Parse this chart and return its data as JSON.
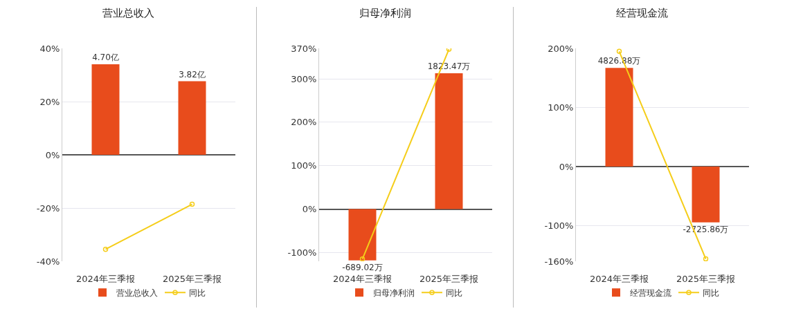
{
  "chart_data": [
    {
      "type": "bar",
      "title": "营业总收入",
      "categories": [
        "2024年三季报",
        "2025年三季报"
      ],
      "series": [
        {
          "name": "营业总收入",
          "axis": "y2",
          "color": "#e84c1c",
          "values": [
            4.7,
            3.82
          ],
          "value_labels": [
            "4.70亿",
            "3.82亿"
          ]
        },
        {
          "name": "同比",
          "type": "line",
          "color": "#f5cd19",
          "values": [
            -35.5,
            -18.6
          ]
        }
      ],
      "ylim": [
        -40,
        40
      ],
      "yticks": [
        {
          "value": -40,
          "label": "-40%"
        },
        {
          "value": -20,
          "label": "-20%"
        },
        {
          "value": 0,
          "label": "0%"
        },
        {
          "value": 20,
          "label": "20%"
        },
        {
          "value": 40,
          "label": "40%"
        }
      ],
      "y2lim": [
        -5.53,
        5.53
      ],
      "grid": "y",
      "legend": "bottom",
      "marker": "circle"
    },
    {
      "type": "bar",
      "title": "归母净利润",
      "categories": [
        "2024年三季报",
        "2025年三季报"
      ],
      "series": [
        {
          "name": "归母净利润",
          "axis": "y2",
          "color": "#e84c1c",
          "values": [
            -689.02,
            1823.47
          ],
          "value_labels": [
            "-689.02万",
            "1823.47万"
          ]
        },
        {
          "name": "同比",
          "type": "line",
          "color": "#f5cd19",
          "values": [
            -115,
            368
          ]
        }
      ],
      "ylim": [
        -120,
        370
      ],
      "yticks": [
        {
          "value": -100,
          "label": "-100%"
        },
        {
          "value": 0,
          "label": "0%"
        },
        {
          "value": 100,
          "label": "100%"
        },
        {
          "value": 200,
          "label": "200%"
        },
        {
          "value": 300,
          "label": "300%"
        },
        {
          "value": 370,
          "label": "370%"
        }
      ],
      "y2lim": [
        -700,
        2157
      ],
      "grid": "y",
      "legend": "bottom",
      "marker": "circle"
    },
    {
      "type": "bar",
      "title": "经营现金流",
      "categories": [
        "2024年三季报",
        "2025年三季报"
      ],
      "series": [
        {
          "name": "经营现金流",
          "axis": "y2",
          "color": "#e84c1c",
          "values": [
            4826.88,
            -2725.86
          ],
          "value_labels": [
            "4826.88万",
            "-2725.86万"
          ]
        },
        {
          "name": "同比",
          "type": "line",
          "color": "#f5cd19",
          "values": [
            195,
            -156
          ]
        }
      ],
      "ylim": [
        -160,
        200
      ],
      "yticks": [
        {
          "value": -160,
          "label": "-160%"
        },
        {
          "value": -100,
          "label": "-100%"
        },
        {
          "value": 0,
          "label": "0%"
        },
        {
          "value": 100,
          "label": "100%"
        },
        {
          "value": 200,
          "label": "200%"
        }
      ],
      "y2lim": [
        -4624,
        5780
      ],
      "grid": "y",
      "legend": "bottom",
      "marker": "circle"
    }
  ]
}
